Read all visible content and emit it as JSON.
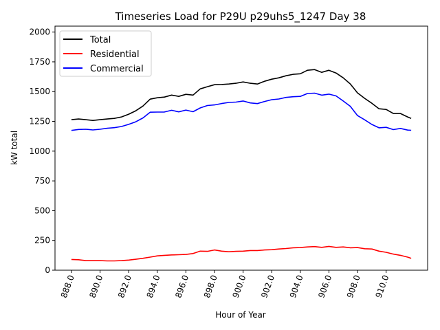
{
  "chart_data": {
    "type": "line",
    "title": "Timeseries Load for P29U p29uhs5_1247  Day 38",
    "xlabel": "Hour of Year",
    "ylabel": "kW total",
    "xlim": [
      886.85,
      912.9
    ],
    "ylim": [
      0,
      2050
    ],
    "xticks": [
      888,
      890,
      892,
      894,
      896,
      898,
      900,
      902,
      904,
      906,
      908,
      910
    ],
    "xtick_labels": [
      "888.0",
      "890.0",
      "892.0",
      "894.0",
      "896.0",
      "898.0",
      "900.0",
      "902.0",
      "904.0",
      "906.0",
      "908.0",
      "910.0"
    ],
    "yticks": [
      0,
      250,
      500,
      750,
      1000,
      1250,
      1500,
      1750,
      2000
    ],
    "ytick_labels": [
      "0",
      "250",
      "500",
      "750",
      "1000",
      "1250",
      "1500",
      "1750",
      "2000"
    ],
    "grid": false,
    "legend_position": "top-left",
    "x": [
      888,
      888.5,
      889,
      889.5,
      890,
      890.5,
      891,
      891.5,
      892,
      892.5,
      893,
      893.5,
      894,
      894.5,
      895,
      895.5,
      896,
      896.5,
      897,
      897.5,
      898,
      898.5,
      899,
      899.5,
      900,
      900.5,
      901,
      901.5,
      902,
      902.5,
      903,
      903.5,
      904,
      904.5,
      905,
      905.5,
      906,
      906.5,
      907,
      907.5,
      908,
      908.5,
      909,
      909.5,
      910,
      910.5,
      911,
      911.5,
      911.75
    ],
    "series": [
      {
        "name": "Total",
        "color": "#000000",
        "values": [
          1264,
          1270,
          1264,
          1258,
          1264,
          1270,
          1275,
          1287,
          1310,
          1339,
          1379,
          1437,
          1448,
          1454,
          1471,
          1460,
          1477,
          1471,
          1523,
          1541,
          1558,
          1560,
          1564,
          1570,
          1581,
          1570,
          1564,
          1587,
          1604,
          1616,
          1633,
          1645,
          1650,
          1679,
          1685,
          1662,
          1679,
          1656,
          1616,
          1564,
          1489,
          1443,
          1402,
          1356,
          1350,
          1316,
          1316,
          1287,
          1275
        ]
      },
      {
        "name": "Residential",
        "color": "#ff0000",
        "values": [
          90,
          88,
          80,
          80,
          80,
          78,
          78,
          80,
          85,
          92,
          100,
          110,
          120,
          125,
          128,
          130,
          132,
          140,
          160,
          158,
          170,
          160,
          155,
          158,
          160,
          165,
          165,
          170,
          172,
          178,
          182,
          188,
          190,
          195,
          198,
          192,
          200,
          192,
          195,
          188,
          190,
          180,
          178,
          160,
          150,
          135,
          125,
          110,
          100
        ]
      },
      {
        "name": "Commercial",
        "color": "#0000ff",
        "values": [
          1174,
          1182,
          1184,
          1178,
          1184,
          1192,
          1197,
          1207,
          1225,
          1247,
          1279,
          1327,
          1328,
          1329,
          1343,
          1330,
          1345,
          1331,
          1363,
          1383,
          1388,
          1400,
          1409,
          1412,
          1421,
          1405,
          1399,
          1417,
          1432,
          1438,
          1451,
          1457,
          1460,
          1484,
          1487,
          1470,
          1479,
          1464,
          1421,
          1376,
          1299,
          1263,
          1224,
          1196,
          1200,
          1181,
          1191,
          1177,
          1175
        ]
      }
    ]
  }
}
